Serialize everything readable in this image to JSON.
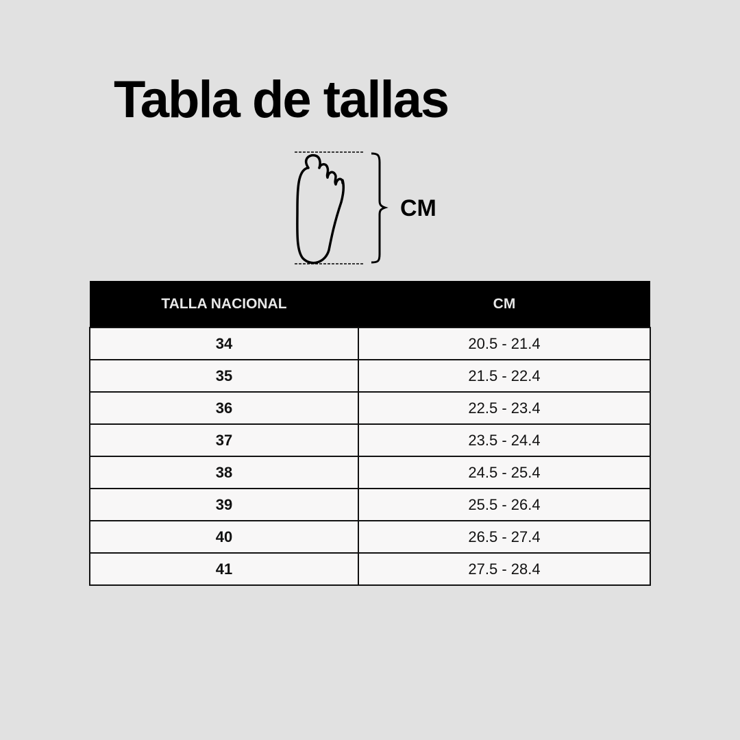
{
  "title": "Tabla de tallas",
  "diagram": {
    "icon": "foot-outline-icon",
    "measure_label": "CM"
  },
  "table": {
    "headers": [
      "TALLA NACIONAL",
      "CM"
    ],
    "rows": [
      {
        "size": "34",
        "cm": "20.5 - 21.4"
      },
      {
        "size": "35",
        "cm": "21.5 - 22.4"
      },
      {
        "size": "36",
        "cm": "22.5 - 23.4"
      },
      {
        "size": "37",
        "cm": "23.5 - 24.4"
      },
      {
        "size": "38",
        "cm": "24.5 - 25.4"
      },
      {
        "size": "39",
        "cm": "25.5 - 26.4"
      },
      {
        "size": "40",
        "cm": "26.5 - 27.4"
      },
      {
        "size": "41",
        "cm": "27.5 - 28.4"
      }
    ]
  },
  "colors": {
    "background": "#e1e1e1",
    "header": "#000000",
    "cell": "#f8f7f7"
  }
}
